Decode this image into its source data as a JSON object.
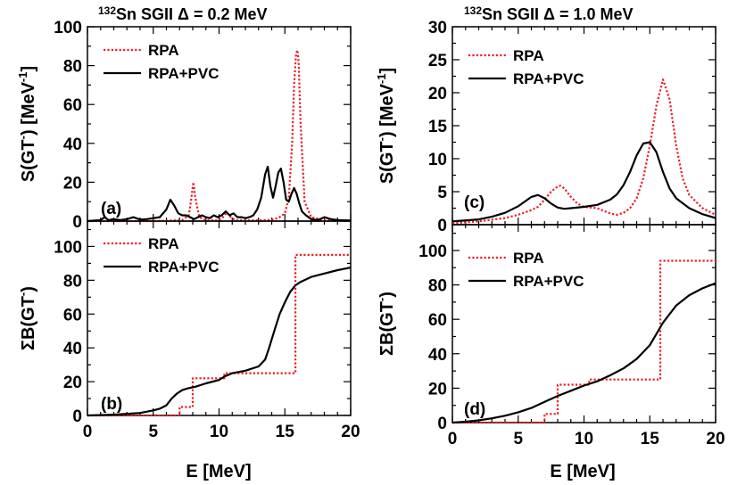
{
  "figure": {
    "left_title": {
      "sup": "132",
      "text": "Sn  SGII  Δ = 0.2 MeV"
    },
    "right_title": {
      "sup": "132",
      "text": "Sn  SGII  Δ = 1.0 MeV"
    },
    "xlabel": "E [MeV]",
    "colors": {
      "rpa": "#ee1c25",
      "pvc": "#000000"
    }
  },
  "chart_data": [
    {
      "id": "a",
      "type": "line",
      "panel_label": "(a)",
      "ylabel": {
        "main": "S(GT",
        "sup1": "-",
        "mid": ") [MeV",
        "sup2": "-1",
        "end": "]"
      },
      "xlim": [
        0,
        20
      ],
      "ylim": [
        0,
        100
      ],
      "xticks": [
        0,
        5,
        10,
        15,
        20
      ],
      "yticks": [
        0,
        20,
        40,
        60,
        80,
        100
      ],
      "legend": [
        "RPA",
        "RPA+PVC"
      ],
      "series": [
        {
          "name": "RPA",
          "style": "dotted",
          "x": [
            0,
            2,
            5,
            7.2,
            7.7,
            7.9,
            8.05,
            8.2,
            8.5,
            9,
            10,
            10.3,
            10.6,
            10.9,
            11.2,
            12,
            13,
            13.8,
            14.5,
            15,
            15.3,
            15.55,
            15.7,
            15.85,
            15.95,
            16.05,
            16.2,
            16.5,
            17,
            18,
            20
          ],
          "y": [
            0,
            0,
            0,
            0.5,
            3,
            12,
            20,
            12,
            2,
            0.4,
            0.5,
            2,
            4.5,
            2,
            0.5,
            0.4,
            0.4,
            0.6,
            1.5,
            4,
            12,
            40,
            70,
            86,
            88,
            82,
            50,
            10,
            2,
            0.5,
            0.2
          ]
        },
        {
          "name": "RPA+PVC",
          "style": "solid",
          "x": [
            0,
            1,
            1.3,
            1.6,
            2,
            2.5,
            3,
            3.5,
            4,
            4.5,
            5,
            5.5,
            6,
            6.3,
            6.6,
            6.9,
            7.2,
            7.5,
            7.8,
            8.1,
            8.4,
            8.7,
            9,
            9.3,
            9.6,
            9.9,
            10.2,
            10.5,
            10.8,
            11.1,
            11.4,
            11.7,
            12,
            12.3,
            12.6,
            12.9,
            13.2,
            13.5,
            13.7,
            13.9,
            14.1,
            14.3,
            14.5,
            14.7,
            14.9,
            15.1,
            15.3,
            15.5,
            15.7,
            15.9,
            16.1,
            16.3,
            16.6,
            17,
            17.5,
            18,
            18.5,
            19,
            20
          ],
          "y": [
            0,
            0.5,
            2,
            0.5,
            1,
            0.5,
            1,
            2,
            0.8,
            1,
            1.5,
            2,
            6,
            11,
            8,
            4,
            3,
            3,
            2,
            1,
            2,
            3,
            2,
            1.5,
            3,
            2,
            3,
            5,
            3,
            4,
            2,
            2,
            1.5,
            2,
            3,
            6,
            12,
            24,
            28,
            18,
            12,
            18,
            25,
            27,
            20,
            11,
            10,
            14,
            17,
            14,
            9,
            5,
            3,
            1,
            0.5,
            2,
            1,
            0.5,
            0.3
          ]
        }
      ]
    },
    {
      "id": "b",
      "type": "line",
      "panel_label": "(b)",
      "ylabel": {
        "main": "ΣB(GT",
        "sup1": "-",
        "mid": ")",
        "sup2": "",
        "end": ""
      },
      "xlim": [
        0,
        20
      ],
      "ylim": [
        0,
        115
      ],
      "xticks": [
        0,
        5,
        10,
        15,
        20
      ],
      "xticklabels": [
        "0",
        "5",
        "10",
        "15",
        "20"
      ],
      "yticks": [
        0,
        20,
        40,
        60,
        80,
        100
      ],
      "legend": [
        "RPA",
        "RPA+PVC"
      ],
      "series": [
        {
          "name": "RPA",
          "style": "dotted",
          "x": [
            0,
            7,
            7,
            8,
            8,
            10.4,
            10.4,
            15.8,
            15.8,
            20
          ],
          "y": [
            0,
            0,
            5,
            5,
            22,
            22,
            25,
            25,
            95,
            95
          ]
        },
        {
          "name": "RPA+PVC",
          "style": "solid",
          "x": [
            0,
            2,
            4,
            5,
            5.5,
            6,
            6.4,
            6.8,
            7.2,
            7.6,
            7.9,
            8.2,
            9,
            10,
            10.4,
            11,
            12,
            13,
            13.5,
            13.8,
            14.2,
            14.6,
            15,
            15.4,
            15.8,
            16.2,
            17,
            18,
            19,
            20
          ],
          "y": [
            0,
            0.5,
            1.5,
            3,
            4,
            6,
            10,
            13,
            15,
            16,
            16.5,
            17,
            19,
            21,
            23,
            25,
            26.5,
            29,
            33,
            40,
            50,
            60,
            67,
            73,
            77,
            79,
            82,
            84,
            86,
            87.5
          ]
        }
      ]
    },
    {
      "id": "c",
      "type": "line",
      "panel_label": "(c)",
      "ylabel": {
        "main": "S(GT",
        "sup1": "-",
        "mid": ") [MeV",
        "sup2": "-1",
        "end": "]"
      },
      "xlim": [
        0,
        20
      ],
      "ylim": [
        0,
        30
      ],
      "xticks": [
        0,
        5,
        10,
        15,
        20
      ],
      "yticks": [
        0,
        5,
        10,
        15,
        20,
        25,
        30
      ],
      "legend": [
        "RPA",
        "RPA+PVC"
      ],
      "series": [
        {
          "name": "RPA",
          "style": "dotted",
          "x": [
            0,
            2,
            4,
            5,
            6,
            6.5,
            7,
            7.5,
            8,
            8.2,
            8.5,
            9,
            9.5,
            10,
            10.5,
            11,
            11.5,
            12,
            12.5,
            13,
            13.5,
            14,
            14.5,
            15,
            15.5,
            16,
            16.5,
            17,
            17.5,
            18,
            19,
            20
          ],
          "y": [
            0.2,
            0.5,
            1,
            1.5,
            2.2,
            2.7,
            3.8,
            5,
            5.8,
            5.9,
            5.5,
            4.2,
            3.2,
            2.7,
            2.6,
            2.5,
            2.1,
            1.7,
            1.5,
            1.8,
            2.5,
            4,
            7,
            12,
            18,
            22,
            19,
            12,
            7,
            4.5,
            2.5,
            1.5
          ]
        },
        {
          "name": "RPA+PVC",
          "style": "solid",
          "x": [
            0,
            2,
            3,
            4,
            5,
            5.5,
            6,
            6.5,
            7,
            7.5,
            8,
            8.5,
            9,
            10,
            11,
            12,
            12.5,
            13,
            13.5,
            14,
            14.5,
            15,
            15.5,
            16,
            16.5,
            17,
            18,
            19,
            20
          ],
          "y": [
            0.5,
            0.8,
            1.2,
            1.8,
            2.8,
            3.5,
            4.2,
            4.5,
            4,
            3.2,
            2.6,
            2.4,
            2.5,
            2.7,
            3,
            3.8,
            4.6,
            6,
            8,
            10.5,
            12.3,
            12.5,
            11,
            8,
            5.5,
            4,
            2.5,
            1.6,
            1
          ]
        }
      ]
    },
    {
      "id": "d",
      "type": "line",
      "panel_label": "(d)",
      "ylabel": {
        "main": "ΣB(GT",
        "sup1": "-",
        "mid": ")",
        "sup2": "",
        "end": ""
      },
      "xlim": [
        0,
        20
      ],
      "ylim": [
        0,
        115
      ],
      "xticks": [
        0,
        5,
        10,
        15,
        20
      ],
      "xticklabels": [
        "0",
        "5",
        "10",
        "15",
        "20"
      ],
      "yticks": [
        0,
        20,
        40,
        60,
        80,
        100
      ],
      "legend": [
        "RPA",
        "RPA+PVC"
      ],
      "series": [
        {
          "name": "RPA",
          "style": "dotted",
          "x": [
            0,
            7,
            7,
            8,
            8,
            10.4,
            10.4,
            15.8,
            15.8,
            20
          ],
          "y": [
            0,
            0,
            5,
            5,
            22,
            22,
            25,
            25,
            94,
            94
          ]
        },
        {
          "name": "RPA+PVC",
          "style": "solid",
          "x": [
            0,
            1,
            2,
            3,
            4,
            5,
            6,
            7,
            8,
            9,
            10,
            11,
            12,
            13,
            14,
            15,
            16,
            17,
            18,
            19,
            20
          ],
          "y": [
            0,
            0.5,
            1.3,
            2.5,
            4,
            6,
            8.5,
            12,
            15.5,
            18.5,
            21.5,
            24,
            27.5,
            31.5,
            37,
            45,
            58,
            68,
            74,
            78,
            81
          ]
        }
      ]
    }
  ]
}
